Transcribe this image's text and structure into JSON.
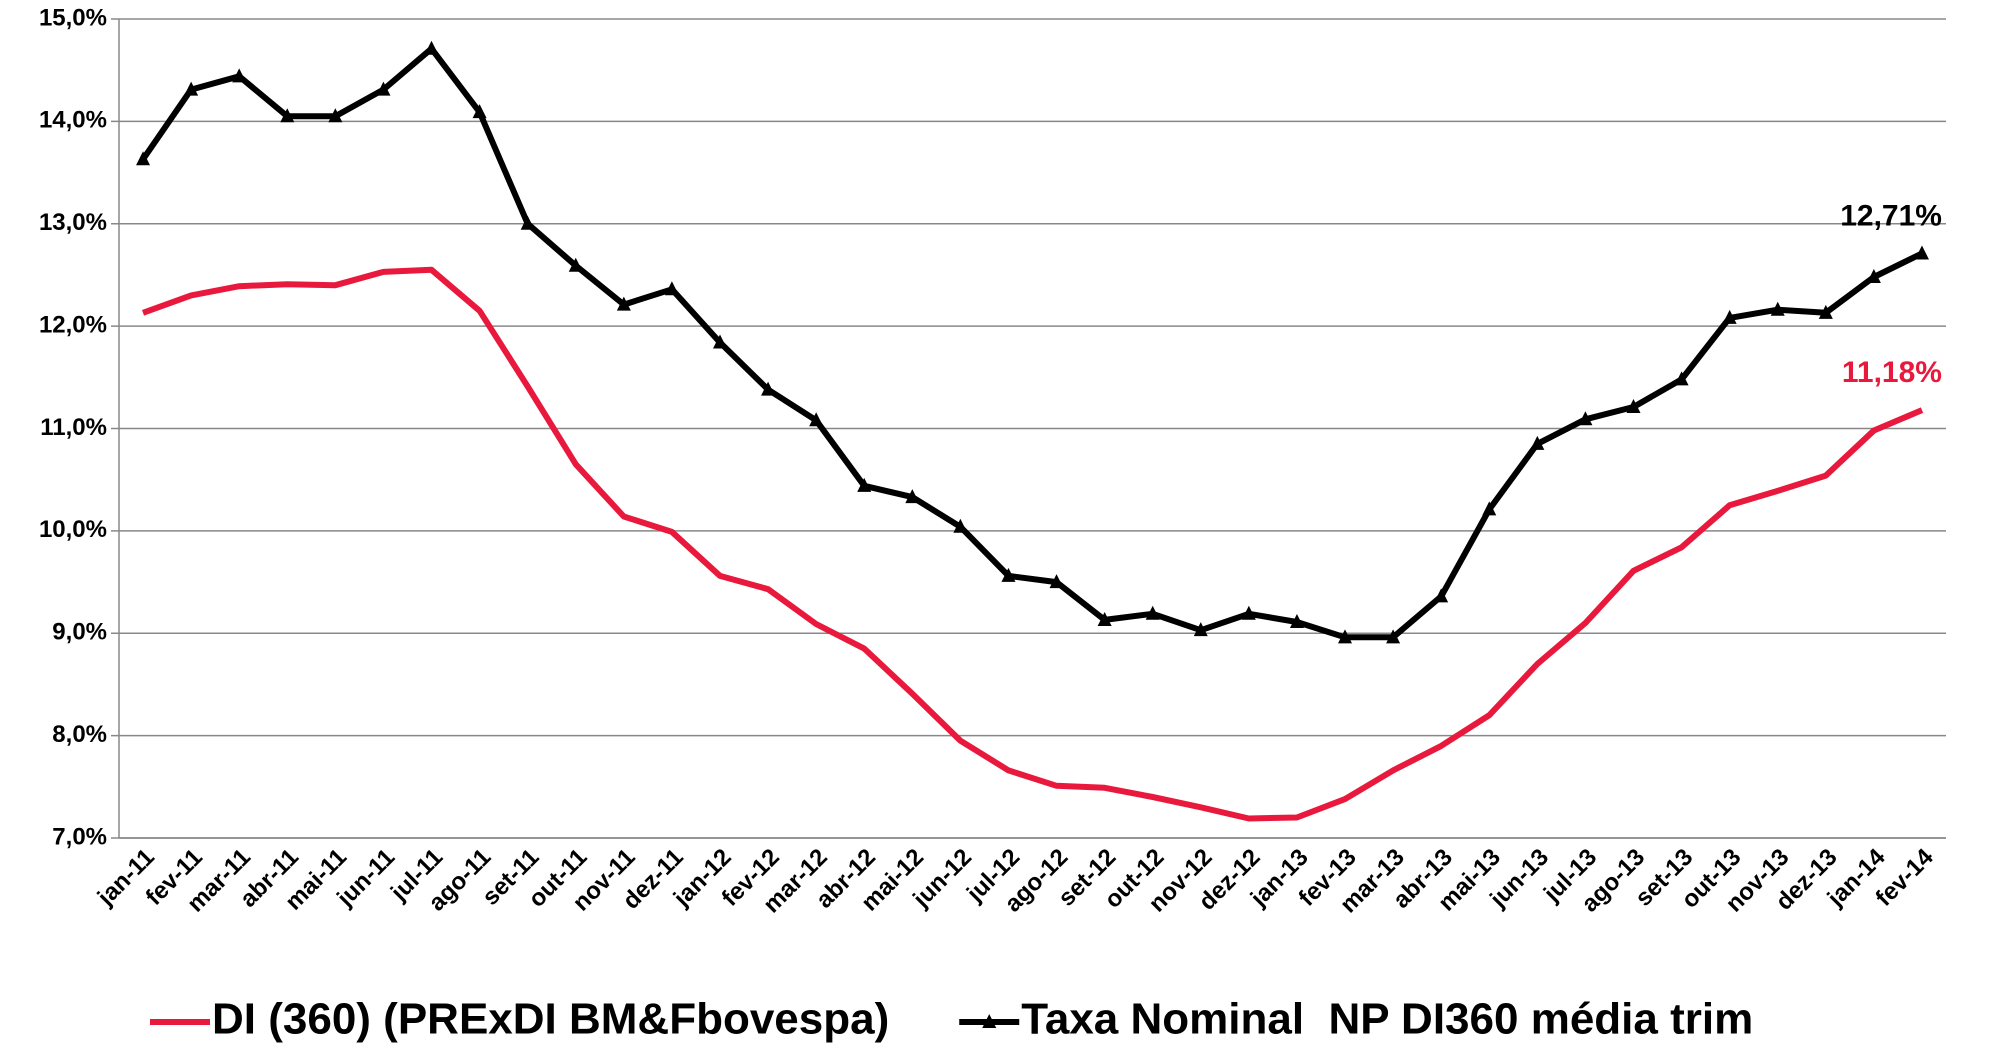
{
  "chart_data": {
    "type": "line",
    "categories": [
      "jan-11",
      "fev-11",
      "mar-11",
      "abr-11",
      "mai-11",
      "jun-11",
      "jul-11",
      "ago-11",
      "set-11",
      "out-11",
      "nov-11",
      "dez-11",
      "jan-12",
      "fev-12",
      "mar-12",
      "abr-12",
      "mai-12",
      "jun-12",
      "jul-12",
      "ago-12",
      "set-12",
      "out-12",
      "nov-12",
      "dez-12",
      "jan-13",
      "fev-13",
      "mar-13",
      "abr-13",
      "mai-13",
      "jun-13",
      "jul-13",
      "ago-13",
      "set-13",
      "out-13",
      "nov-13",
      "dez-13",
      "jan-14",
      "fev-14"
    ],
    "series": [
      {
        "name": "DI (360) (PRExDI BM&Fbovespa)",
        "color": "#e8193c",
        "marker": "none",
        "values": [
          12.13,
          12.3,
          12.39,
          12.41,
          12.4,
          12.53,
          12.55,
          12.15,
          11.41,
          10.65,
          10.14,
          9.99,
          9.56,
          9.43,
          9.09,
          8.85,
          8.41,
          7.95,
          7.66,
          7.51,
          7.49,
          7.4,
          7.3,
          7.19,
          7.2,
          7.38,
          7.66,
          7.9,
          8.2,
          8.7,
          9.1,
          9.61,
          9.84,
          10.25,
          10.39,
          10.54,
          10.98,
          11.18
        ],
        "value_labels": [
          null,
          null,
          null,
          null,
          null,
          null,
          null,
          null,
          null,
          null,
          null,
          null,
          null,
          null,
          null,
          null,
          null,
          null,
          null,
          null,
          null,
          null,
          null,
          null,
          null,
          null,
          null,
          null,
          null,
          null,
          null,
          null,
          null,
          null,
          null,
          null,
          null,
          "11,18%"
        ]
      },
      {
        "name": "Taxa Nominal  NP DI360 média trim",
        "color": "#000000",
        "marker": "triangle",
        "values": [
          13.63,
          14.31,
          14.44,
          14.05,
          14.05,
          14.31,
          14.71,
          14.09,
          13.0,
          12.59,
          12.21,
          12.36,
          11.84,
          11.38,
          11.08,
          10.44,
          10.33,
          10.04,
          9.56,
          9.5,
          9.13,
          9.19,
          9.03,
          9.19,
          9.11,
          8.96,
          8.96,
          9.36,
          10.21,
          10.85,
          11.09,
          11.21,
          11.48,
          12.08,
          12.16,
          12.13,
          12.48,
          12.71
        ],
        "value_labels": [
          null,
          null,
          null,
          null,
          null,
          null,
          null,
          null,
          null,
          null,
          null,
          null,
          null,
          null,
          null,
          null,
          null,
          null,
          null,
          null,
          null,
          null,
          null,
          null,
          null,
          null,
          null,
          null,
          null,
          null,
          null,
          null,
          null,
          null,
          null,
          null,
          null,
          "12,71%"
        ]
      }
    ],
    "ylim": [
      7,
      15
    ],
    "yticks": [
      {
        "value": 7,
        "label": "7,0%"
      },
      {
        "value": 8,
        "label": "8,0%"
      },
      {
        "value": 9,
        "label": "9,0%"
      },
      {
        "value": 10,
        "label": "10,0%"
      },
      {
        "value": 11,
        "label": "11,0%"
      },
      {
        "value": 12,
        "label": "12,0%"
      },
      {
        "value": 13,
        "label": "13,0%"
      },
      {
        "value": 14,
        "label": "14,0%"
      },
      {
        "value": 15,
        "label": "15,0%"
      }
    ],
    "grid": true,
    "legend": "bottom"
  }
}
